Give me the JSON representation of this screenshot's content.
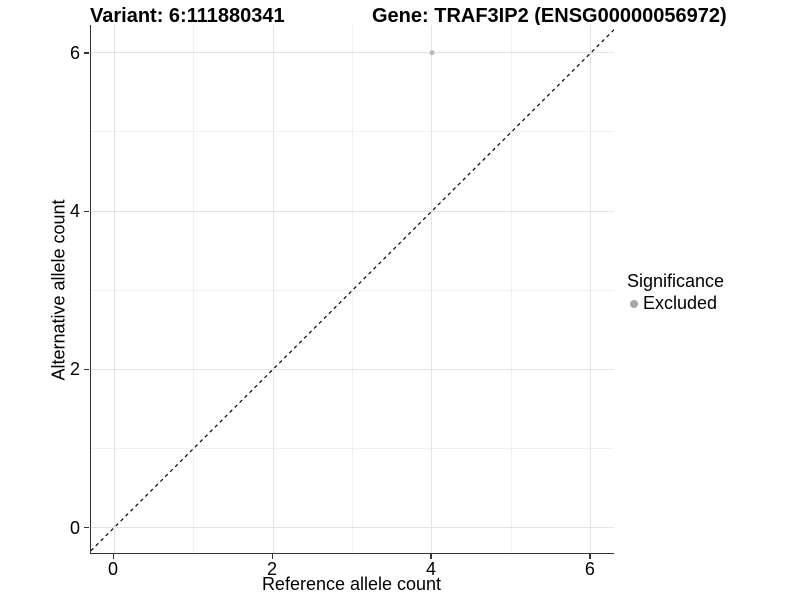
{
  "header": {
    "variant_title": "Variant: 6:111880341",
    "gene_title": "Gene: TRAF3IP2 (ENSG00000056972)"
  },
  "legend": {
    "title": "Significance",
    "items": [
      {
        "label": "Excluded",
        "color": "#a8a8a8"
      }
    ]
  },
  "chart_data": {
    "type": "scatter",
    "title": "Variant: 6:111880341 / Gene: TRAF3IP2 (ENSG00000056972)",
    "xlabel": "Reference allele count",
    "ylabel": "Alternative allele count",
    "xlim": [
      -0.29,
      6.29
    ],
    "ylim": [
      -0.32,
      6.35
    ],
    "x_ticks": [
      0,
      2,
      4,
      6
    ],
    "y_ticks": [
      0,
      2,
      4,
      6
    ],
    "x_minor_ticks": [
      1,
      3,
      5
    ],
    "y_minor_ticks": [
      1,
      3,
      5
    ],
    "x_tick_labels": [
      "0",
      "2",
      "4",
      "6"
    ],
    "y_tick_labels": [
      "0",
      "2",
      "4",
      "6"
    ],
    "grid": true,
    "legend_position": "right",
    "series": [
      {
        "name": "Excluded",
        "color": "#b9b9b9",
        "point_radius": 2.5,
        "points": [
          {
            "x": 4,
            "y": 6
          }
        ]
      }
    ],
    "reference_line": {
      "type": "identity",
      "equation": "y = x",
      "style": "dashed",
      "color": "#000000"
    },
    "colors": {
      "background": "#ffffff",
      "grid_major": "#e4e4e4",
      "grid_minor": "#f1f1f1",
      "axis_line": "#333333",
      "text": "#000000"
    }
  }
}
